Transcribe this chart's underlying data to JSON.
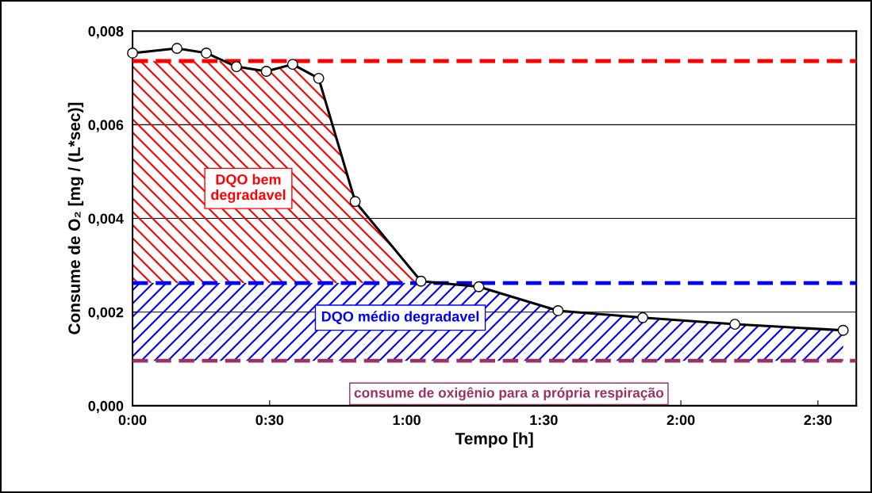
{
  "chart_data": {
    "type": "line",
    "xlabel": "Tempo [h]",
    "ylabel": "Consume de O₂ [mg / (L*sec)]",
    "x": [
      0,
      0.162,
      0.269,
      0.379,
      0.488,
      0.584,
      0.679,
      0.812,
      1.052,
      1.263,
      1.552,
      1.861,
      2.197,
      2.592
    ],
    "series": [
      {
        "color": "#000000",
        "values": [
          0.00753,
          0.00763,
          0.00753,
          0.00724,
          0.00714,
          0.00729,
          0.00699,
          0.00436,
          0.00266,
          0.00254,
          0.00203,
          0.00188,
          0.00174,
          0.00161
        ]
      }
    ],
    "marker": "circle",
    "line_style": "solid",
    "grid": "y",
    "xlim": [
      0,
      2.64
    ],
    "ylim": [
      0,
      0.008
    ],
    "xticks": [
      {
        "value": 0,
        "label": "0:00"
      },
      {
        "value": 0.5,
        "label": "0:30"
      },
      {
        "value": 1,
        "label": "1:00"
      },
      {
        "value": 1.5,
        "label": "1:30"
      },
      {
        "value": 2,
        "label": "2:00"
      },
      {
        "value": 2.5,
        "label": "2:30"
      }
    ],
    "yticks": [
      {
        "value": 0,
        "label": "0,000"
      },
      {
        "value": 0.002,
        "label": "0,002"
      },
      {
        "value": 0.004,
        "label": "0,004"
      },
      {
        "value": 0.006,
        "label": "0,006"
      },
      {
        "value": 0.008,
        "label": "0,008"
      }
    ],
    "ref_lines": [
      {
        "axis": "y",
        "value": 0.00736,
        "color": "#ff0000",
        "line_style": "dashed"
      },
      {
        "axis": "y",
        "value": 0.00262,
        "color": "#0000ff",
        "line_style": "dashed"
      },
      {
        "axis": "y",
        "value": 0.00096,
        "color": "#993366",
        "line_style": "dashed",
        "label": "consume de oxigênio para a própria respiração"
      }
    ],
    "bands": [
      {
        "axis": "y",
        "from": 0.00262,
        "to": 0.00736,
        "color": "#ff0000",
        "label": "DQO bem\ndegradavel"
      },
      {
        "axis": "y",
        "from": 0.00096,
        "to": 0.00262,
        "color": "#0000ff",
        "label": "DQO médio degradavel"
      }
    ]
  }
}
